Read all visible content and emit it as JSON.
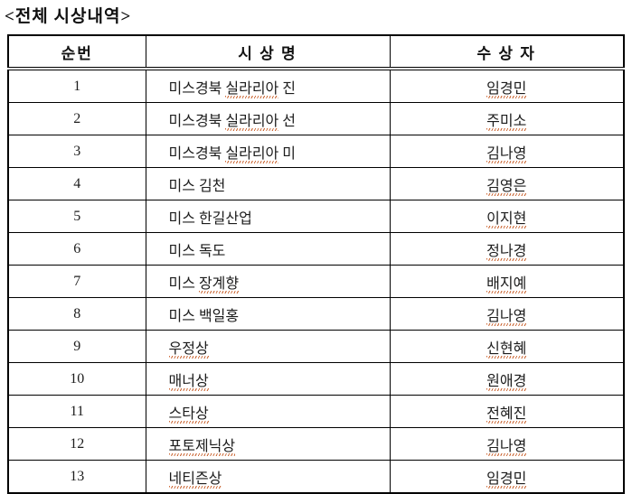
{
  "page": {
    "title": "<전체 시상내역>"
  },
  "colors": {
    "spellcheck_underline": "#cc6a38",
    "table_border": "#000000",
    "text": "#1c1c1c"
  },
  "table": {
    "headers": [
      "순번",
      "시 상 명",
      "수 상 자"
    ],
    "rows": [
      {
        "no": "1",
        "award": [
          {
            "t": "미스경북 "
          },
          {
            "t": "실라리아",
            "u": true
          },
          {
            "t": " 진"
          }
        ],
        "winner": {
          "t": "임경민",
          "u": true
        }
      },
      {
        "no": "2",
        "award": [
          {
            "t": "미스경북 "
          },
          {
            "t": "실라리아",
            "u": true
          },
          {
            "t": " 선"
          }
        ],
        "winner": {
          "t": "주미소",
          "u": true
        }
      },
      {
        "no": "3",
        "award": [
          {
            "t": "미스경북 "
          },
          {
            "t": "실라리아",
            "u": true
          },
          {
            "t": " 미"
          }
        ],
        "winner": {
          "t": "김나영",
          "u": true
        }
      },
      {
        "no": "4",
        "award": [
          {
            "t": "미스 김천"
          }
        ],
        "winner": {
          "t": "김영은",
          "u": true
        }
      },
      {
        "no": "5",
        "award": [
          {
            "t": "미스 한길산업"
          }
        ],
        "winner": {
          "t": "이지현",
          "u": true
        }
      },
      {
        "no": "6",
        "award": [
          {
            "t": "미스 독도"
          }
        ],
        "winner": {
          "t": "정나경",
          "u": true
        }
      },
      {
        "no": "7",
        "award": [
          {
            "t": "미스 "
          },
          {
            "t": "장계향",
            "u": true
          }
        ],
        "winner": {
          "t": "배지예",
          "u": true
        }
      },
      {
        "no": "8",
        "award": [
          {
            "t": "미스 백일홍"
          }
        ],
        "winner": {
          "t": "김나영",
          "u": true
        }
      },
      {
        "no": "9",
        "award": [
          {
            "t": "우정상",
            "u": true
          }
        ],
        "winner": {
          "t": "신현혜",
          "u": true
        }
      },
      {
        "no": "10",
        "award": [
          {
            "t": "매너상",
            "u": true
          }
        ],
        "winner": {
          "t": "원애경",
          "u": true
        }
      },
      {
        "no": "11",
        "award": [
          {
            "t": "스타상",
            "u": true
          }
        ],
        "winner": {
          "t": "전혜진",
          "u": true
        }
      },
      {
        "no": "12",
        "award": [
          {
            "t": "포토제닉상",
            "u": true
          }
        ],
        "winner": {
          "t": "김나영",
          "u": true
        }
      },
      {
        "no": "13",
        "award": [
          {
            "t": "네티즌상",
            "u": true
          }
        ],
        "winner": {
          "t": "임경민",
          "u": true
        }
      }
    ]
  }
}
